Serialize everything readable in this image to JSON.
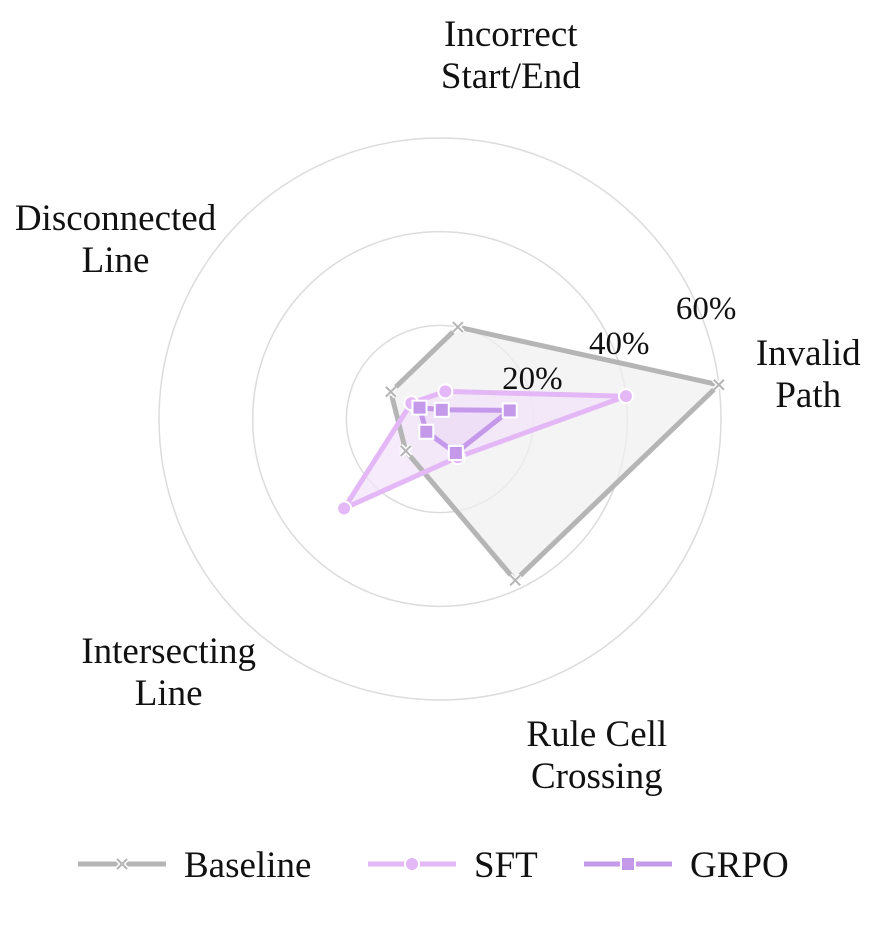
{
  "chart_data": {
    "type": "radar",
    "axes": [
      [
        "Invalid",
        "Path"
      ],
      [
        "Incorrect",
        "Start/End"
      ],
      [
        "Disconnected",
        "Line"
      ],
      [
        "Intersecting",
        "Line"
      ],
      [
        "Rule Cell",
        "Crossing"
      ]
    ],
    "rlim": [
      0,
      60
    ],
    "rticks": [
      20,
      40,
      60
    ],
    "rtick_labels": [
      "20%",
      "40%",
      "60%"
    ],
    "grid": true,
    "legend_position": "bottom",
    "series": [
      {
        "name": "Baseline",
        "values": [
          60,
          20,
          12,
          10,
          38
        ],
        "color": "#b5b5b5",
        "marker": "x",
        "fill": "#f0f0f0"
      },
      {
        "name": "SFT",
        "values": [
          40,
          6,
          7,
          28,
          9
        ],
        "color": "#e4b8f6",
        "marker": "circle",
        "fill": "#f1e3f8"
      },
      {
        "name": "GRPO",
        "values": [
          15,
          2,
          5,
          4,
          8
        ],
        "color": "#c599ea",
        "marker": "square",
        "fill": "#ecdcf6"
      }
    ]
  }
}
